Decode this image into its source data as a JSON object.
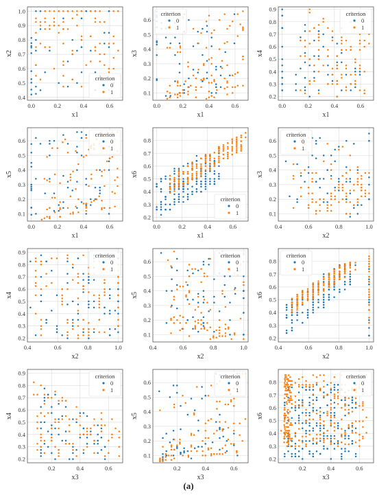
{
  "caption": "(a)",
  "legend_title": "criterion",
  "legend_labels": [
    "0",
    "1"
  ],
  "colors": {
    "class0": "#1f77b4",
    "class1": "#ff7f0e",
    "grid": "#d9d9d9",
    "frame": "#555555",
    "text": "#333333"
  },
  "chart_data": [
    {
      "type": "scatter",
      "xlabel": "x1",
      "ylabel": "x2",
      "xlim": [
        -0.03,
        0.7
      ],
      "ylim": [
        0.38,
        1.03
      ],
      "xticks": [
        0.0,
        0.2,
        0.4,
        0.6
      ],
      "yticks": [
        0.4,
        0.5,
        0.6,
        0.7,
        0.8,
        0.9,
        1.0
      ],
      "legend": "bottom-right",
      "series": [
        {
          "name": "0",
          "gen": "tri21_0",
          "seed": 11,
          "n": 55
        },
        {
          "name": "1",
          "gen": "tri21_1",
          "seed": 12,
          "n": 90
        }
      ]
    },
    {
      "type": "scatter",
      "xlabel": "x1",
      "ylabel": "x3",
      "xlim": [
        -0.03,
        0.7
      ],
      "ylim": [
        0.05,
        0.69
      ],
      "xticks": [
        0.0,
        0.2,
        0.4,
        0.6
      ],
      "yticks": [
        0.1,
        0.2,
        0.3,
        0.4,
        0.5,
        0.6
      ],
      "legend": "top-left",
      "series": [
        {
          "name": "0",
          "gen": "rays_0",
          "seed": 21,
          "n": 65
        },
        {
          "name": "1",
          "gen": "rays_1",
          "seed": 22,
          "n": 110
        }
      ]
    },
    {
      "type": "scatter",
      "xlabel": "x1",
      "ylabel": "x4",
      "xlim": [
        -0.03,
        0.7
      ],
      "ylim": [
        0.17,
        0.92
      ],
      "xticks": [
        0.0,
        0.2,
        0.4,
        0.6
      ],
      "yticks": [
        0.2,
        0.3,
        0.4,
        0.5,
        0.6,
        0.7,
        0.8,
        0.9
      ],
      "legend": "top-right",
      "series": [
        {
          "name": "0",
          "gen": "tri14_0",
          "seed": 31,
          "n": 80
        },
        {
          "name": "1",
          "gen": "tri14_1",
          "seed": 32,
          "n": 90
        }
      ]
    },
    {
      "type": "scatter",
      "xlabel": "x1",
      "ylabel": "x5",
      "xlim": [
        -0.03,
        0.7
      ],
      "ylim": [
        0.05,
        0.69
      ],
      "xticks": [
        0.0,
        0.2,
        0.4,
        0.6
      ],
      "yticks": [
        0.1,
        0.2,
        0.3,
        0.4,
        0.5,
        0.6
      ],
      "legend": "top-right",
      "series": [
        {
          "name": "0",
          "gen": "rays_0",
          "seed": 41,
          "n": 65
        },
        {
          "name": "1",
          "gen": "rays_1",
          "seed": 42,
          "n": 100
        }
      ]
    },
    {
      "type": "scatter",
      "xlabel": "x1",
      "ylabel": "x6",
      "xlim": [
        -0.03,
        0.72
      ],
      "ylim": [
        0.17,
        0.9
      ],
      "xticks": [
        0.0,
        0.2,
        0.4,
        0.6
      ],
      "yticks": [
        0.2,
        0.3,
        0.4,
        0.5,
        0.6,
        0.7,
        0.8
      ],
      "legend": "bottom-right",
      "series": [
        {
          "name": "0",
          "gen": "pos16_0",
          "seed": 51,
          "n": 200
        },
        {
          "name": "1",
          "gen": "pos16_1",
          "seed": 52,
          "n": 220
        }
      ]
    },
    {
      "type": "scatter",
      "xlabel": "x2",
      "ylabel": "x3",
      "xlim": [
        0.4,
        1.03
      ],
      "ylim": [
        0.05,
        0.69
      ],
      "xticks": [
        0.4,
        0.6,
        0.8,
        1.0
      ],
      "yticks": [
        0.1,
        0.2,
        0.3,
        0.4,
        0.5,
        0.6
      ],
      "legend": "top-left",
      "series": [
        {
          "name": "0",
          "gen": "v23_0",
          "seed": 61,
          "n": 65
        },
        {
          "name": "1",
          "gen": "v23_1",
          "seed": 62,
          "n": 100
        }
      ]
    },
    {
      "type": "scatter",
      "xlabel": "x2",
      "ylabel": "x4",
      "xlim": [
        0.4,
        1.03
      ],
      "ylim": [
        0.17,
        0.93
      ],
      "xticks": [
        0.4,
        0.6,
        0.8,
        1.0
      ],
      "yticks": [
        0.2,
        0.3,
        0.4,
        0.5,
        0.6,
        0.7,
        0.8,
        0.9
      ],
      "legend": "top-right",
      "series": [
        {
          "name": "0",
          "gen": "d24_0",
          "seed": 71,
          "n": 90
        },
        {
          "name": "1",
          "gen": "d24_1",
          "seed": 72,
          "n": 100
        }
      ]
    },
    {
      "type": "scatter",
      "xlabel": "x2",
      "ylabel": "x5",
      "xlim": [
        0.4,
        1.03
      ],
      "ylim": [
        0.05,
        0.69
      ],
      "xticks": [
        0.4,
        0.6,
        0.8,
        1.0
      ],
      "yticks": [
        0.1,
        0.2,
        0.3,
        0.4,
        0.5,
        0.6
      ],
      "legend": "top-right",
      "series": [
        {
          "name": "0",
          "gen": "v25_0",
          "seed": 81,
          "n": 70
        },
        {
          "name": "1",
          "gen": "v25_1",
          "seed": 82,
          "n": 100
        }
      ]
    },
    {
      "type": "scatter",
      "xlabel": "x2",
      "ylabel": "x6",
      "xlim": [
        0.4,
        1.03
      ],
      "ylim": [
        0.17,
        0.9
      ],
      "xticks": [
        0.4,
        0.6,
        0.8,
        1.0
      ],
      "yticks": [
        0.2,
        0.3,
        0.4,
        0.5,
        0.6,
        0.7,
        0.8
      ],
      "legend": "top-left",
      "series": [
        {
          "name": "0",
          "gen": "pos26_0",
          "seed": 91,
          "n": 190
        },
        {
          "name": "1",
          "gen": "pos26_1",
          "seed": 92,
          "n": 210
        }
      ]
    },
    {
      "type": "scatter",
      "xlabel": "x3",
      "ylabel": "x4",
      "xlim": [
        0.03,
        0.7
      ],
      "ylim": [
        0.17,
        0.93
      ],
      "xticks": [
        0.2,
        0.4,
        0.6
      ],
      "yticks": [
        0.2,
        0.3,
        0.4,
        0.5,
        0.6,
        0.7,
        0.8,
        0.9
      ],
      "legend": "top-right",
      "series": [
        {
          "name": "0",
          "gen": "tri34_0",
          "seed": 101,
          "n": 70
        },
        {
          "name": "1",
          "gen": "tri34_1",
          "seed": 102,
          "n": 90
        }
      ]
    },
    {
      "type": "scatter",
      "xlabel": "x3",
      "ylabel": "x5",
      "xlim": [
        0.03,
        0.7
      ],
      "ylim": [
        0.05,
        0.69
      ],
      "xticks": [
        0.2,
        0.4,
        0.6
      ],
      "yticks": [
        0.1,
        0.2,
        0.3,
        0.4,
        0.5,
        0.6
      ],
      "legend": "top-right",
      "series": [
        {
          "name": "0",
          "gen": "rays35_0",
          "seed": 111,
          "n": 65
        },
        {
          "name": "1",
          "gen": "rays35_1",
          "seed": 112,
          "n": 110
        }
      ]
    },
    {
      "type": "scatter",
      "xlabel": "x3",
      "ylabel": "x6",
      "xlim": [
        0.03,
        0.7
      ],
      "ylim": [
        0.17,
        0.9
      ],
      "xticks": [
        0.2,
        0.4,
        0.6
      ],
      "yticks": [
        0.2,
        0.3,
        0.4,
        0.5,
        0.6,
        0.7,
        0.8
      ],
      "legend": "top-right",
      "series": [
        {
          "name": "0",
          "gen": "col36_0",
          "seed": 121,
          "n": 230
        },
        {
          "name": "1",
          "gen": "col36_1",
          "seed": 122,
          "n": 300
        }
      ]
    }
  ]
}
